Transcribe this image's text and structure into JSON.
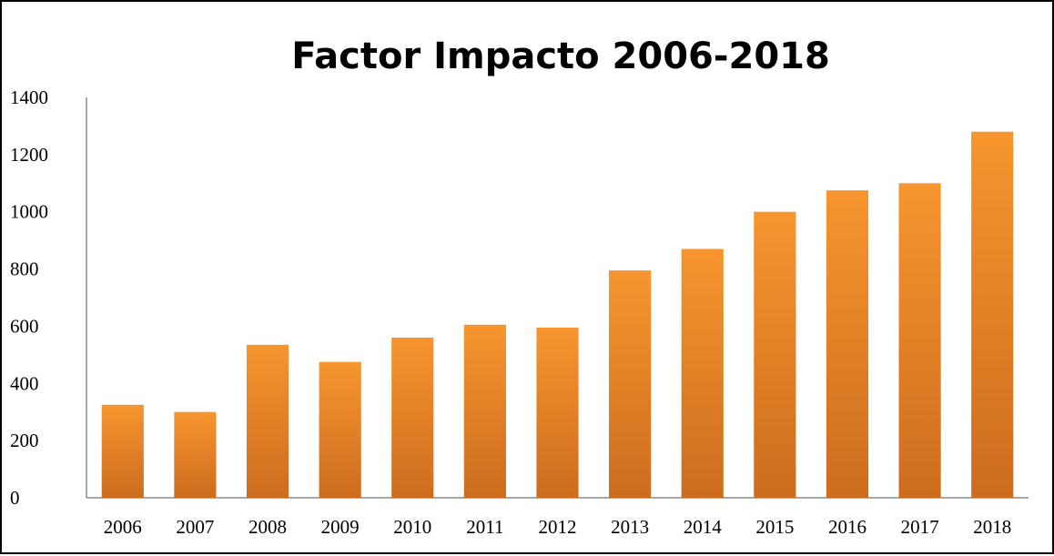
{
  "chart_data": {
    "type": "bar",
    "title": "Factor Impacto 2006-2018",
    "xlabel": "",
    "ylabel": "",
    "categories": [
      "2006",
      "2007",
      "2008",
      "2009",
      "2010",
      "2011",
      "2012",
      "2013",
      "2014",
      "2015",
      "2016",
      "2017",
      "2018"
    ],
    "values": [
      325,
      300,
      535,
      475,
      560,
      605,
      595,
      795,
      870,
      1000,
      1075,
      1100,
      1280
    ],
    "ylim": [
      0,
      1400
    ],
    "yticks": [
      "0",
      "200",
      "400",
      "600",
      "800",
      "1000",
      "1200",
      "1400"
    ],
    "grid": false,
    "legend": "none",
    "bar_color_top": "#f7952f",
    "bar_color_bottom": "#cd6c1e"
  }
}
